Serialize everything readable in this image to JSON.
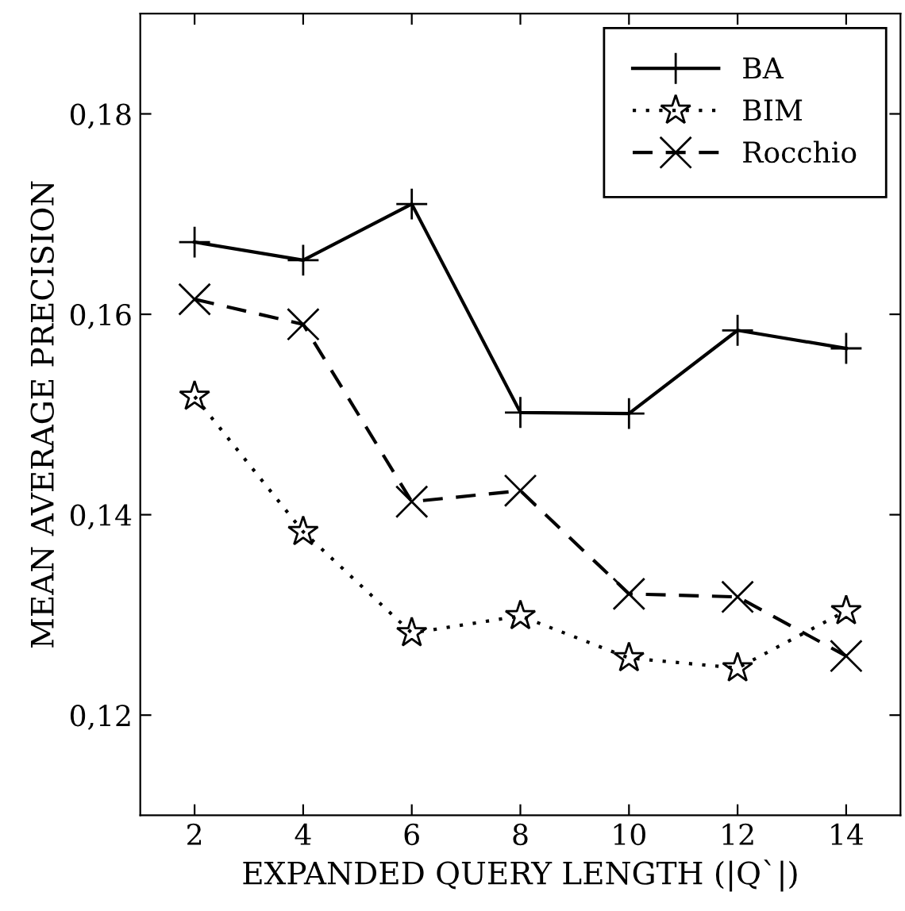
{
  "chart_data": {
    "type": "line",
    "xlabel": "EXPANDED QUERY LENGTH (|Q`|)",
    "ylabel": "MEAN AVERAGE PRECISION",
    "x": [
      2,
      4,
      6,
      8,
      10,
      12,
      14
    ],
    "series": [
      {
        "name": "BA",
        "color": "#000000",
        "values": [
          0.1672,
          0.1654,
          0.171,
          0.1502,
          0.1501,
          0.1584,
          0.1566
        ],
        "marker": "plus",
        "line_style": "solid"
      },
      {
        "name": "BIM",
        "color": "#000000",
        "values": [
          0.1518,
          0.1383,
          0.1282,
          0.1299,
          0.1257,
          0.1247,
          0.1304
        ],
        "marker": "star",
        "line_style": "dotted"
      },
      {
        "name": "Rocchio",
        "color": "#000000",
        "values": [
          0.1615,
          0.159,
          0.1413,
          0.1424,
          0.1321,
          0.1318,
          0.1259
        ],
        "marker": "cross",
        "line_style": "dashed"
      }
    ],
    "xlim": [
      1,
      15
    ],
    "xticks": [
      2,
      4,
      6,
      8,
      10,
      12,
      14
    ],
    "ylim": [
      0.11,
      0.19
    ],
    "yticks": [
      {
        "value": 0.12,
        "label": "0,12"
      },
      {
        "value": 0.14,
        "label": "0,14"
      },
      {
        "value": 0.16,
        "label": "0,16"
      },
      {
        "value": 0.18,
        "label": "0,18"
      }
    ],
    "grid": false,
    "legend": "top right"
  }
}
